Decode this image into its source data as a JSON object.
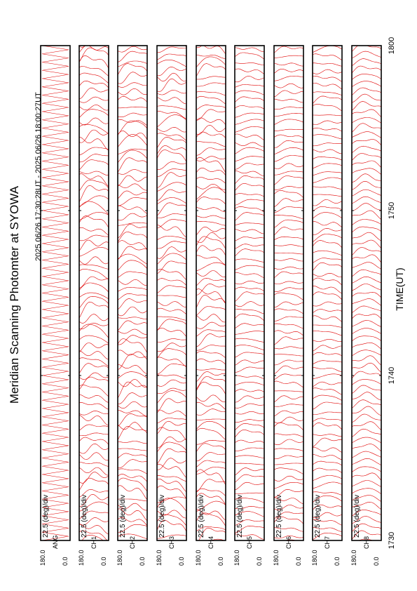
{
  "chart_data": {
    "type": "scan-panels",
    "title": "Meridian Scanning Photomter at SYOWA",
    "subtitle": "2025 06/26 17:30:28UT - 2025 06/26 18:00:27UT",
    "x_label": "TIME(UT)",
    "xlim": [
      0,
      30
    ],
    "xticks": [
      {
        "value": 0,
        "label": "1730"
      },
      {
        "value": 10,
        "label": "1740"
      },
      {
        "value": 20,
        "label": "1750"
      },
      {
        "value": 30,
        "label": "1800"
      }
    ],
    "ylim": [
      0,
      180
    ],
    "yticks": [
      {
        "value": 180,
        "label": "180.0"
      },
      {
        "value": 0,
        "label": "0.0"
      }
    ],
    "scale_label": "22.5 (deg)/div",
    "color": "#e00000",
    "panels": [
      "ANG",
      "CH1",
      "CH2",
      "CH3",
      "CH4",
      "CH5",
      "CH6",
      "CH7",
      "CH8"
    ]
  }
}
